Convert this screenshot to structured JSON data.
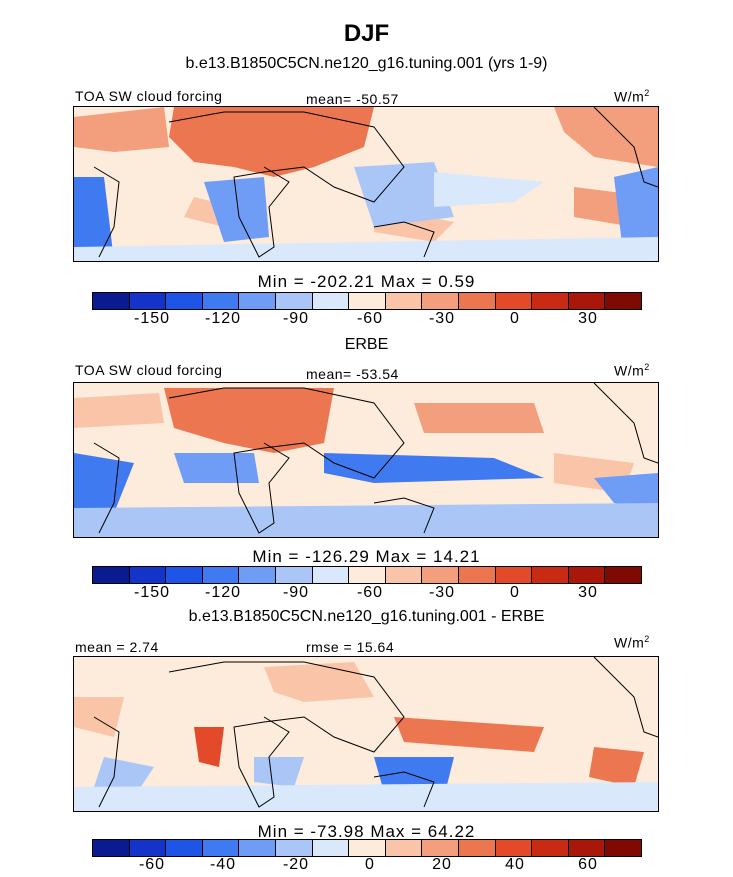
{
  "title": "DJF",
  "colorbar_colors": [
    "#0a1a8f",
    "#1433c8",
    "#1f55e6",
    "#3f7af0",
    "#6f9df5",
    "#a9c6f7",
    "#d9e8fb",
    "#fdebdc",
    "#f9c4a8",
    "#f39e7c",
    "#ec7650",
    "#e24a2a",
    "#c92a14",
    "#a8170a",
    "#7f0a04"
  ],
  "panels": [
    {
      "title": "b.e13.B1850C5CN.ne120_g16.tuning.001 (yrs 1-9)",
      "left_label": "TOA SW cloud forcing",
      "center_label": "mean= -50.57",
      "units": "W/m",
      "units_sup": "2",
      "min_max": "Min = -202.21 Max =   0.59",
      "colorbar_ticks": [
        "-150",
        "-120",
        "-90",
        "-60",
        "-30",
        "0",
        "30"
      ]
    },
    {
      "title": "ERBE",
      "left_label": "TOA SW cloud forcing",
      "center_label": "mean= -53.54",
      "units": "W/m",
      "units_sup": "2",
      "min_max": "Min = -126.29 Max =  14.21",
      "colorbar_ticks": [
        "-150",
        "-120",
        "-90",
        "-60",
        "-30",
        "0",
        "30"
      ]
    },
    {
      "title": "b.e13.B1850C5CN.ne120_g16.tuning.001 - ERBE",
      "left_label": "mean =   2.74",
      "center_label": "rmse =  15.64",
      "units": "W/m",
      "units_sup": "2",
      "min_max": "Min = -73.98 Max =  64.22",
      "colorbar_ticks": [
        "-60",
        "-40",
        "-20",
        "0",
        "20",
        "40",
        "60"
      ]
    }
  ],
  "chart_data": [
    {
      "type": "heatmap",
      "title": "b.e13.B1850C5CN.ne120_g16.tuning.001 (yrs 1-9)",
      "variable": "TOA SW cloud forcing",
      "units": "W/m2",
      "mean": -50.57,
      "min": -202.21,
      "max": 0.59,
      "colorbar_levels": [
        -150,
        -120,
        -90,
        -60,
        -30,
        0,
        30
      ]
    },
    {
      "type": "heatmap",
      "title": "ERBE",
      "variable": "TOA SW cloud forcing",
      "units": "W/m2",
      "mean": -53.54,
      "min": -126.29,
      "max": 14.21,
      "colorbar_levels": [
        -150,
        -120,
        -90,
        -60,
        -30,
        0,
        30
      ]
    },
    {
      "type": "heatmap",
      "title": "b.e13.B1850C5CN.ne120_g16.tuning.001 - ERBE",
      "units": "W/m2",
      "mean": 2.74,
      "rmse": 15.64,
      "min": -73.98,
      "max": 64.22,
      "colorbar_levels": [
        -60,
        -40,
        -20,
        0,
        20,
        40,
        60
      ]
    }
  ]
}
